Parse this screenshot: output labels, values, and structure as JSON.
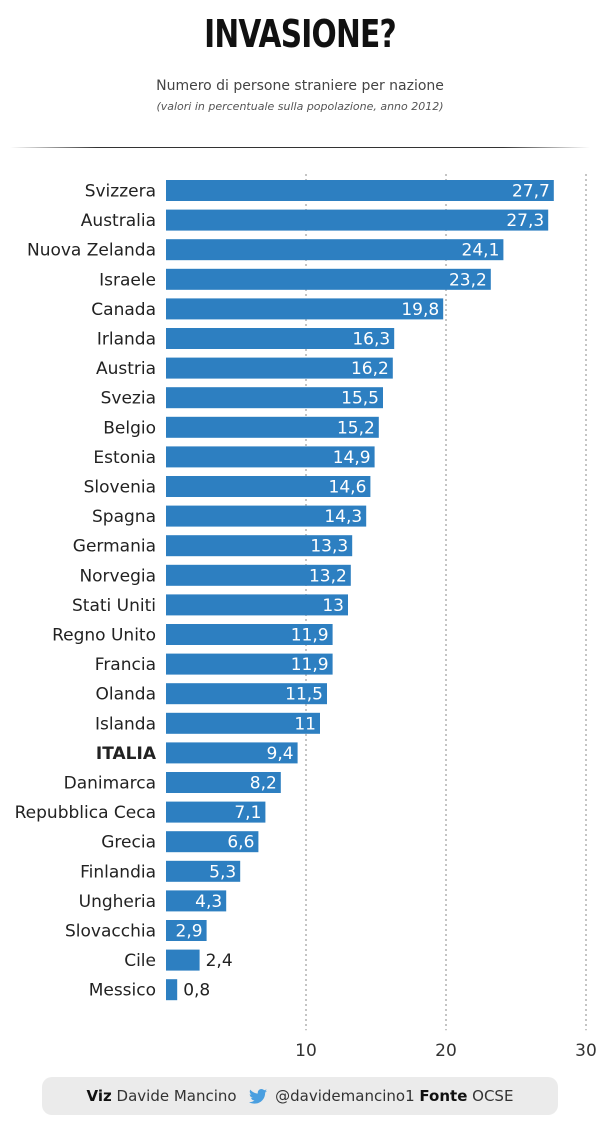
{
  "header": {
    "title": "INVASIONE?",
    "subtitle": "Numero di persone straniere per nazione",
    "note": "(valori in percentuale sulla popolazione, anno 2012)"
  },
  "chart_data": {
    "type": "bar",
    "orientation": "horizontal",
    "categories": [
      "Svizzera",
      "Australia",
      "Nuova Zelanda",
      "Israele",
      "Canada",
      "Irlanda",
      "Austria",
      "Svezia",
      "Belgio",
      "Estonia",
      "Slovenia",
      "Spagna",
      "Germania",
      "Norvegia",
      "Stati Uniti",
      "Regno Unito",
      "Francia",
      "Olanda",
      "Islanda",
      "ITALIA",
      "Danimarca",
      "Repubblica Ceca",
      "Grecia",
      "Finlandia",
      "Ungheria",
      "Slovacchia",
      "Cile",
      "Messico"
    ],
    "values": [
      27.7,
      27.3,
      24.1,
      23.2,
      19.8,
      16.3,
      16.2,
      15.5,
      15.2,
      14.9,
      14.6,
      14.3,
      13.3,
      13.2,
      13,
      11.9,
      11.9,
      11.5,
      11,
      9.4,
      8.2,
      7.1,
      6.6,
      5.3,
      4.3,
      2.9,
      2.4,
      0.8
    ],
    "value_labels": [
      "27,7",
      "27,3",
      "24,1",
      "23,2",
      "19,8",
      "16,3",
      "16,2",
      "15,5",
      "15,2",
      "14,9",
      "14,6",
      "14,3",
      "13,3",
      "13,2",
      "13",
      "11,9",
      "11,9",
      "11,5",
      "11",
      "9,4",
      "8,2",
      "7,1",
      "6,6",
      "5,3",
      "4,3",
      "2,9",
      "2,4",
      "0,8"
    ],
    "highlight": "ITALIA",
    "xlim": [
      0,
      30
    ],
    "x_ticks": [
      10,
      20,
      30
    ],
    "gridlines": "dotted",
    "bar_color": "#2d7fc1"
  },
  "footer": {
    "viz_label": "Viz",
    "author": "Davide Mancino",
    "handle": "@davidemancino1",
    "source_label": "Fonte",
    "source": "OCSE",
    "twitter_color": "#4a9fe0"
  }
}
